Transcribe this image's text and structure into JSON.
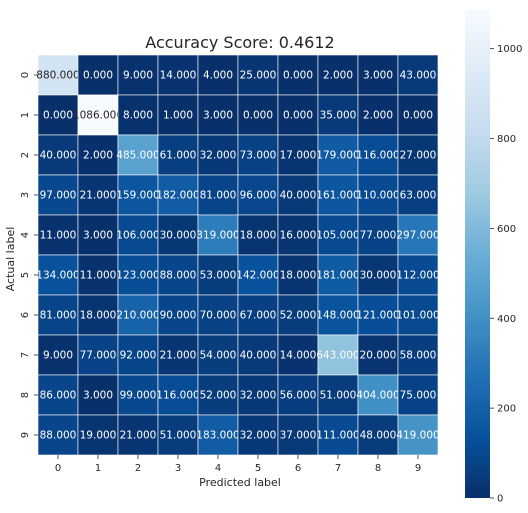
{
  "chart_data": {
    "type": "heatmap",
    "title": "Accuracy Score: 0.4612",
    "xlabel": "Predicted label",
    "ylabel": "Actual label",
    "x_ticks": [
      "0",
      "1",
      "2",
      "3",
      "4",
      "5",
      "6",
      "7",
      "8",
      "9"
    ],
    "y_ticks": [
      "0",
      "1",
      "2",
      "3",
      "4",
      "5",
      "6",
      "7",
      "8",
      "9"
    ],
    "matrix": [
      [
        880,
        0,
        9,
        14,
        4,
        25,
        0,
        2,
        3,
        43
      ],
      [
        0,
        1086,
        8,
        1,
        3,
        0,
        0,
        35,
        2,
        0
      ],
      [
        40,
        2,
        485,
        61,
        32,
        73,
        17,
        179,
        116,
        27
      ],
      [
        97,
        21,
        159,
        182,
        81,
        96,
        40,
        161,
        110,
        63
      ],
      [
        11,
        3,
        106,
        30,
        319,
        18,
        16,
        105,
        77,
        297
      ],
      [
        134,
        11,
        123,
        88,
        53,
        142,
        18,
        181,
        30,
        112
      ],
      [
        81,
        18,
        210,
        90,
        70,
        67,
        52,
        148,
        121,
        101
      ],
      [
        9,
        77,
        92,
        21,
        54,
        40,
        14,
        643,
        20,
        58
      ],
      [
        86,
        3,
        99,
        116,
        52,
        32,
        56,
        51,
        404,
        75
      ],
      [
        88,
        19,
        21,
        51,
        183,
        32,
        37,
        111,
        48,
        419
      ]
    ],
    "cell_labels": [
      [
        "880.000",
        "0.000",
        "9.000",
        "14.000",
        "4.000",
        "25.000",
        "0.000",
        "2.000",
        "3.000",
        "43.000"
      ],
      [
        "0.000",
        "1086.000",
        "8.000",
        "1.000",
        "3.000",
        "0.000",
        "0.000",
        "35.000",
        "2.000",
        "0.000"
      ],
      [
        "40.000",
        "2.000",
        "485.000",
        "61.000",
        "32.000",
        "73.000",
        "17.000",
        "179.000",
        "116.000",
        "27.000"
      ],
      [
        "97.000",
        "21.000",
        "159.000",
        "182.000",
        "81.000",
        "96.000",
        "40.000",
        "161.000",
        "110.000",
        "63.000"
      ],
      [
        "11.000",
        "3.000",
        "106.000",
        "30.000",
        "319.000",
        "18.000",
        "16.000",
        "105.000",
        "77.000",
        "297.000"
      ],
      [
        "134.000",
        "11.000",
        "123.000",
        "88.000",
        "53.000",
        "142.000",
        "18.000",
        "181.000",
        "30.000",
        "112.000"
      ],
      [
        "81.000",
        "18.000",
        "210.000",
        "90.000",
        "70.000",
        "67.000",
        "52.000",
        "148.000",
        "121.000",
        "101.000"
      ],
      [
        "9.000",
        "77.000",
        "92.000",
        "21.000",
        "54.000",
        "40.000",
        "14.000",
        "643.000",
        "20.000",
        "58.000"
      ],
      [
        "86.000",
        "3.000",
        "99.000",
        "116.000",
        "52.000",
        "32.000",
        "56.000",
        "51.000",
        "404.000",
        "75.000"
      ],
      [
        "88.000",
        "19.000",
        "21.000",
        "51.000",
        "183.000",
        "32.000",
        "37.000",
        "111.000",
        "48.000",
        "419.000"
      ]
    ],
    "colormap": "Blues_r",
    "colors": {
      "low": "#08306b",
      "high": "#f7fbff"
    },
    "vmin": 0,
    "vmax": 1086,
    "colorbar": {
      "ticks": [
        0,
        200,
        400,
        600,
        800,
        1000
      ],
      "tick_labels": [
        "0",
        "200",
        "400",
        "600",
        "800",
        "1000"
      ],
      "placement": "right"
    },
    "grid": true,
    "legend": "colorbar-right"
  }
}
